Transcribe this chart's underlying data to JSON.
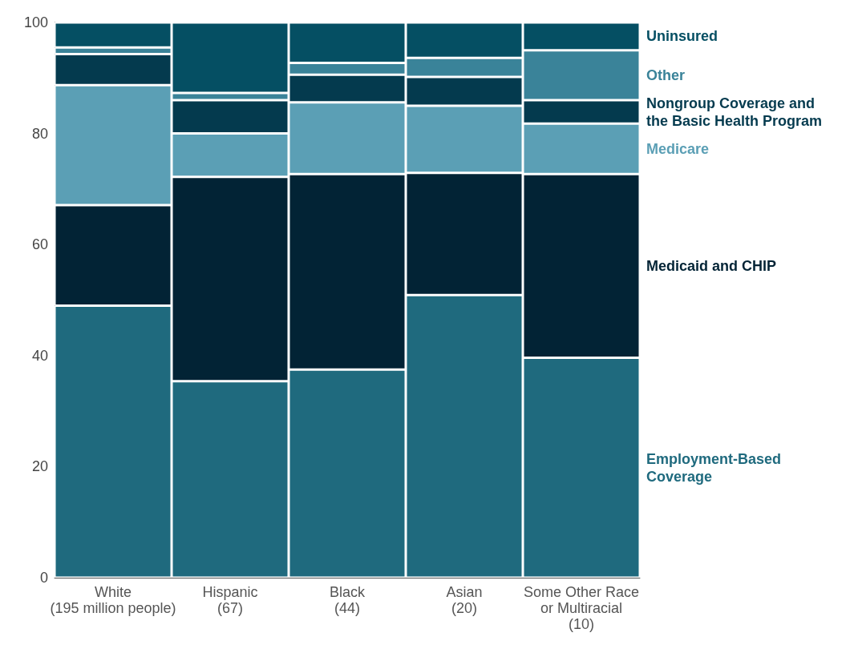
{
  "chart_data": {
    "type": "bar",
    "stacked": true,
    "categories": [
      "White\n(195 million people)",
      "Hispanic\n(67)",
      "Black\n(44)",
      "Asian\n(20)",
      "Some Other Race\nor Multiracial\n(10)"
    ],
    "series": [
      {
        "name": "Employment-Based Coverage",
        "color": "#1f6a7e",
        "values": [
          49,
          35.4,
          37.5,
          50.9,
          39.6
        ]
      },
      {
        "name": "Medicaid and CHIP",
        "color": "#022335",
        "values": [
          18.1,
          36.8,
          35.2,
          22,
          33.1
        ]
      },
      {
        "name": "Medicare",
        "color": "#5b9fb5",
        "values": [
          21.6,
          7.8,
          12.9,
          12.1,
          9.1
        ]
      },
      {
        "name": "Nongroup Coverage and the Basic Health Program",
        "color": "#043a4e",
        "values": [
          5.6,
          6,
          5,
          5.2,
          4.2
        ]
      },
      {
        "name": "Other",
        "color": "#3a8399",
        "values": [
          1.2,
          1.3,
          2.1,
          3.4,
          9
        ]
      },
      {
        "name": "Uninsured",
        "color": "#054f63",
        "values": [
          4.5,
          12.7,
          7.3,
          6.4,
          5
        ]
      }
    ],
    "ylim": [
      0,
      100
    ],
    "yticks": [
      0,
      20,
      40,
      60,
      80,
      100
    ],
    "grid": false,
    "legend": false
  }
}
